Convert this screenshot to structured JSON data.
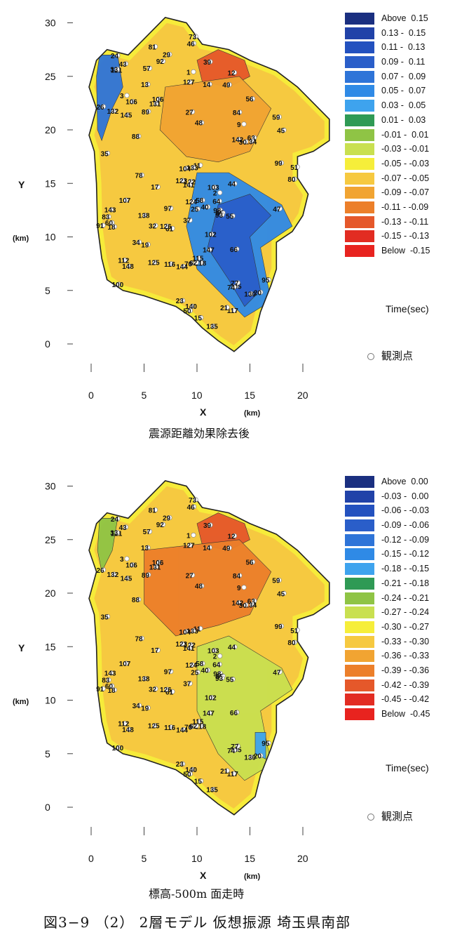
{
  "figure_caption": "図3−9 （2） 2層モデル 仮想振源 埼玉県南部",
  "station_legend_label": "観測点",
  "station_numbers": [
    "11",
    "112",
    "122",
    "121",
    "98",
    "106",
    "117",
    "118",
    "105",
    "103",
    "107",
    "104",
    "66",
    "70",
    "102",
    "106",
    "61",
    "24",
    "57",
    "62",
    "65",
    "63",
    "148",
    "140",
    "143",
    "142",
    "141",
    "127",
    "124",
    "125",
    "130",
    "131",
    "134",
    "135",
    "126",
    "138",
    "84",
    "81",
    "91",
    "64",
    "1",
    "2",
    "3",
    "9",
    "12",
    "13",
    "14",
    "15",
    "17",
    "18",
    "19",
    "20",
    "21",
    "23",
    "25",
    "26",
    "27",
    "29",
    "30",
    "32",
    "33",
    "34",
    "35",
    "37",
    "39",
    "40",
    "43",
    "44",
    "45",
    "46",
    "47",
    "48",
    "49",
    "50",
    "51",
    "55",
    "56",
    "58",
    "59",
    "60",
    "73",
    "74",
    "77",
    "78",
    "80",
    "83",
    "88",
    "89",
    "92",
    "93",
    "95",
    "97",
    "99",
    "100",
    "115",
    "123",
    "132",
    "133",
    "144",
    "145",
    "147",
    "116"
  ],
  "chart_data": [
    {
      "type": "heatmap",
      "caption": "震源距離効果除去後",
      "xlabel": "X",
      "xunit": "(km)",
      "ylabel": "Y",
      "yunit": "(km)",
      "xticks": [
        "0",
        "5",
        "10",
        "15",
        "20"
      ],
      "yticks": [
        "0",
        "5",
        "10",
        "15",
        "20",
        "25",
        "30"
      ],
      "xlim": [
        0,
        22
      ],
      "ylim": [
        0,
        30
      ],
      "legend_title": "Time(sec)",
      "legend": [
        "Above  0.15",
        "0.13 -  0.15",
        "0.11 -  0.13",
        "0.09 -  0.11",
        "0.07 -  0.09",
        "0.05 -  0.07",
        "0.03 -  0.05",
        "0.01 -  0.03",
        "-0.01 -  0.01",
        "-0.03 - -0.01",
        "-0.05 - -0.03",
        "-0.07 - -0.05",
        "-0.09 - -0.07",
        "-0.11 - -0.09",
        "-0.13 - -0.11",
        "-0.15 - -0.13",
        "Below  -0.15"
      ],
      "colors": [
        "#1a2f80",
        "#2142a8",
        "#2351bf",
        "#2a5ec9",
        "#2e74d8",
        "#2f8ae6",
        "#3ea3ee",
        "#2f9a55",
        "#8fc445",
        "#c9e050",
        "#f6ee3a",
        "#f6c940",
        "#f1a432",
        "#ec7f2a",
        "#e5582a",
        "#e22c22",
        "#e8231f"
      ],
      "zones": [
        {
          "name": "west-blue-strip",
          "class": "0.07 -  0.09",
          "points": [
            [
              0.8,
              27
            ],
            [
              2.5,
              27
            ],
            [
              3,
              24
            ],
            [
              2,
              22
            ],
            [
              1,
              19
            ],
            [
              0.6,
              20
            ],
            [
              0.5,
              25
            ]
          ]
        },
        {
          "name": "north-red",
          "class": "-0.13 - -0.11",
          "points": [
            [
              10,
              26.5
            ],
            [
              12,
              27.5
            ],
            [
              14.5,
              26.5
            ],
            [
              15,
              25
            ],
            [
              13,
              24
            ],
            [
              10.5,
              24.5
            ]
          ]
        },
        {
          "name": "center-orange",
          "class": "-0.09 - -0.07",
          "points": [
            [
              7,
              24
            ],
            [
              14,
              25
            ],
            [
              17,
              22
            ],
            [
              15,
              18
            ],
            [
              12,
              17
            ],
            [
              9,
              17.5
            ],
            [
              6.5,
              20
            ]
          ]
        },
        {
          "name": "southeast-blue",
          "class": "0.05 -  0.07",
          "points": [
            [
              10,
              16
            ],
            [
              13,
              16
            ],
            [
              18,
              13
            ],
            [
              19,
              11
            ],
            [
              16,
              9
            ],
            [
              17,
              4
            ],
            [
              14.5,
              2.5
            ],
            [
              12,
              5
            ],
            [
              10,
              7
            ],
            [
              9,
              11
            ]
          ]
        },
        {
          "name": "southeast-deep-blue",
          "class": "0.09 -  0.11",
          "points": [
            [
              12,
              13
            ],
            [
              15,
              14
            ],
            [
              17,
              12
            ],
            [
              15,
              10
            ],
            [
              16,
              5
            ],
            [
              14.5,
              3.5
            ],
            [
              13,
              6
            ],
            [
              11,
              9
            ]
          ]
        }
      ]
    },
    {
      "type": "heatmap",
      "caption": "標高-500m 面走時",
      "xlabel": "X",
      "xunit": "(km)",
      "ylabel": "Y",
      "yunit": "(km)",
      "xticks": [
        "0",
        "5",
        "10",
        "15",
        "20"
      ],
      "yticks": [
        "0",
        "5",
        "10",
        "15",
        "20",
        "25",
        "30"
      ],
      "xlim": [
        0,
        22
      ],
      "ylim": [
        0,
        30
      ],
      "legend_title": "Time(sec)",
      "legend": [
        "Above  0.00",
        "-0.03 -  0.00",
        "-0.06 - -0.03",
        "-0.09 - -0.06",
        "-0.12 - -0.09",
        "-0.15 - -0.12",
        "-0.18 - -0.15",
        "-0.21 - -0.18",
        "-0.24 - -0.21",
        "-0.27 - -0.24",
        "-0.30 - -0.27",
        "-0.33 - -0.30",
        "-0.36 - -0.33",
        "-0.39 - -0.36",
        "-0.42 - -0.39",
        "-0.45 - -0.42",
        "Below  -0.45"
      ],
      "colors": [
        "#1a2f80",
        "#2142a8",
        "#2351bf",
        "#2a5ec9",
        "#2e74d8",
        "#2f8ae6",
        "#3ea3ee",
        "#2f9a55",
        "#8fc445",
        "#c9e050",
        "#f6ee3a",
        "#f6c940",
        "#f1a432",
        "#ec7f2a",
        "#e5582a",
        "#e22c22",
        "#e8231f"
      ],
      "zones": [
        {
          "name": "west-green",
          "class": "-0.24 - -0.21",
          "points": [
            [
              0.8,
              27
            ],
            [
              2.5,
              27
            ],
            [
              2,
              24
            ],
            [
              1,
              22
            ],
            [
              0.6,
              24
            ]
          ]
        },
        {
          "name": "north-red",
          "class": "-0.42 - -0.39",
          "points": [
            [
              10,
              26.5
            ],
            [
              12,
              27.5
            ],
            [
              14.5,
              26.5
            ],
            [
              15,
              25
            ],
            [
              13,
              24
            ],
            [
              10.5,
              24.5
            ]
          ]
        },
        {
          "name": "center-orange",
          "class": "-0.39 - -0.36",
          "points": [
            [
              5,
              24
            ],
            [
              14,
              25
            ],
            [
              17,
              22
            ],
            [
              15,
              18
            ],
            [
              12,
              17
            ],
            [
              8,
              16
            ],
            [
              5,
              19
            ]
          ]
        },
        {
          "name": "southeast-green",
          "class": "-0.27 - -0.24",
          "points": [
            [
              10,
              15
            ],
            [
              13,
              16
            ],
            [
              18,
              13
            ],
            [
              19,
              11
            ],
            [
              16,
              9
            ],
            [
              17,
              4
            ],
            [
              14.5,
              2.5
            ],
            [
              12,
              5
            ],
            [
              10,
              9
            ]
          ]
        },
        {
          "name": "southeast-blue",
          "class": "-0.18 - -0.15",
          "points": [
            [
              15.5,
              7
            ],
            [
              16.5,
              7
            ],
            [
              16.5,
              4.5
            ],
            [
              15.5,
              5
            ]
          ]
        }
      ]
    }
  ]
}
